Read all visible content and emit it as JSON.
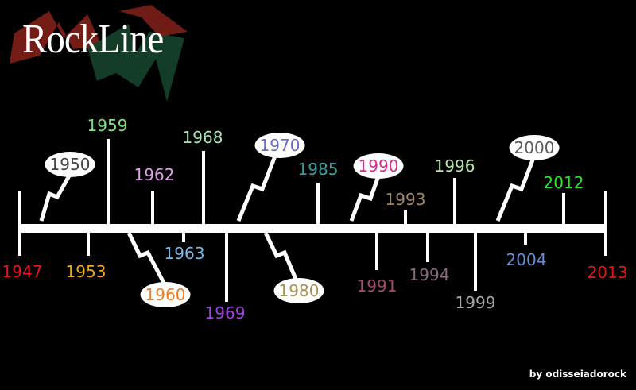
{
  "title": "RockLine",
  "credit": "by odisseiadorock",
  "colors": {
    "background": "#000000",
    "line": "#ffffff",
    "logo_red": "#7a1f17",
    "logo_green": "#14402a"
  },
  "timeline": {
    "start": 1947,
    "end": 2013,
    "events": [
      {
        "year": "1947",
        "color": "#e8141e"
      },
      {
        "year": "1950",
        "color": "#444444",
        "bubble": true
      },
      {
        "year": "1953",
        "color": "#f0a818"
      },
      {
        "year": "1959",
        "color": "#7ee07e"
      },
      {
        "year": "1960",
        "color": "#f07a1e",
        "bubble": true
      },
      {
        "year": "1962",
        "color": "#e0a0e8"
      },
      {
        "year": "1963",
        "color": "#7ab8e6"
      },
      {
        "year": "1968",
        "color": "#a8e8b8"
      },
      {
        "year": "1969",
        "color": "#a040e0"
      },
      {
        "year": "1970",
        "color": "#6a6ac8",
        "bubble": true
      },
      {
        "year": "1980",
        "color": "#a89050",
        "bubble": true
      },
      {
        "year": "1985",
        "color": "#3aa0a0"
      },
      {
        "year": "1990",
        "color": "#d82a8c",
        "bubble": true
      },
      {
        "year": "1991",
        "color": "#a04a70"
      },
      {
        "year": "1993",
        "color": "#a0866a"
      },
      {
        "year": "1994",
        "color": "#8a6a7a"
      },
      {
        "year": "1996",
        "color": "#b8e8a8"
      },
      {
        "year": "1999",
        "color": "#a8a8a8"
      },
      {
        "year": "2000",
        "color": "#5a5a5a",
        "bubble": true
      },
      {
        "year": "2004",
        "color": "#6a90d8"
      },
      {
        "year": "2012",
        "color": "#2ae82a"
      },
      {
        "year": "2013",
        "color": "#e81414"
      }
    ]
  }
}
